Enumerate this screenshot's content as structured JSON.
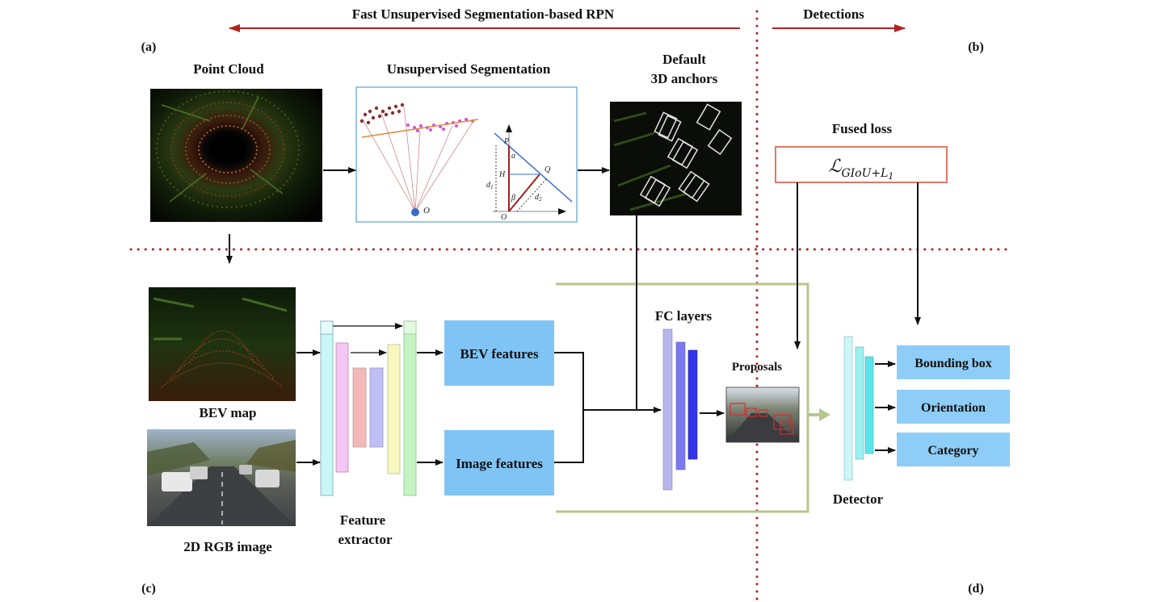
{
  "header": {
    "left_title": "Fast Unsupervised Segmentation-based RPN",
    "right_title": "Detections"
  },
  "panels": {
    "a": "(a)",
    "b": "(b)",
    "c": "(c)",
    "d": "(d)"
  },
  "top_row": {
    "point_cloud": "Point Cloud",
    "unsupervised_segmentation": "Unsupervised Segmentation",
    "default_anchors_line1": "Default",
    "default_anchors_line2": "3D anchors",
    "fused_loss": "Fused loss",
    "loss_symbol": "ℒ",
    "loss_subscript": "GIoU+L",
    "loss_subscript_index": "1"
  },
  "segmentation_diagram": {
    "point_p": "P",
    "point_q": "Q",
    "point_h": "H",
    "point_o_small": "O",
    "point_o_origin": "O",
    "angle_alpha": "α",
    "angle_beta": "β",
    "dist_d1": "d",
    "dist_d1_index": "1",
    "dist_d2": "d",
    "dist_d2_index": "2"
  },
  "bottom_row": {
    "bev_map": "BEV map",
    "rgb_image": "2D RGB image",
    "feature_extractor_line1": "Feature",
    "feature_extractor_line2": "extractor",
    "bev_features": "BEV features",
    "image_features": "Image features",
    "fc_layers": "FC layers",
    "proposals": "Proposals",
    "detector": "Detector",
    "outputs": [
      "Bounding box",
      "Orientation",
      "Category"
    ]
  },
  "colors": {
    "arrow_red": "#b22222",
    "dotted_red": "#b22222",
    "feature_box": "#80c4f5",
    "output_box": "#8ecdf7",
    "green_frame": "#b5c68c",
    "loss_border": "#e07868",
    "seg_frame": "#5aa0d8"
  }
}
